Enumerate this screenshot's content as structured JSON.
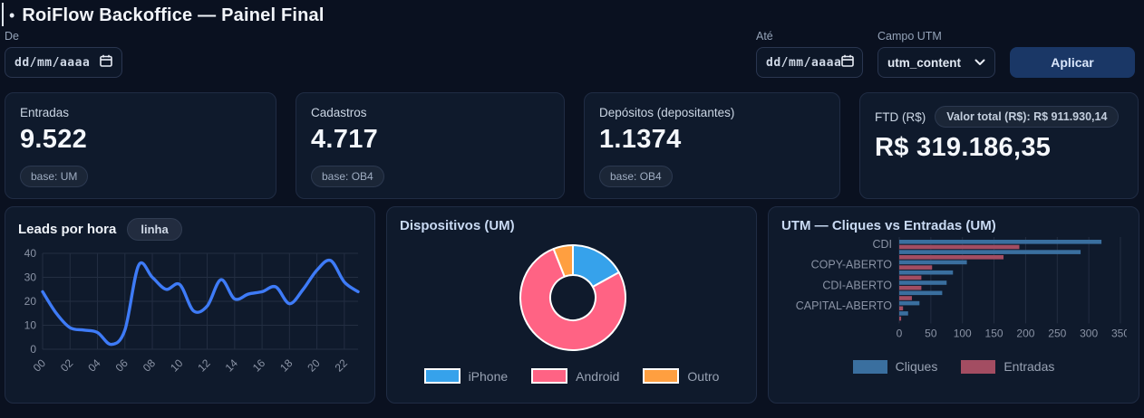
{
  "app": {
    "title": "RoiFlow Backoffice — Painel Final",
    "title_bullet": "•"
  },
  "filters": {
    "from_label": "De",
    "from_value": "dd/mm/aaaa",
    "to_label": "Até",
    "to_value": "dd/mm/aaaa",
    "utm_label": "Campo UTM",
    "utm_selected": "utm_content",
    "apply_label": "Aplicar"
  },
  "stats": [
    {
      "label": "Entradas",
      "value": "9.522",
      "badge": "base: UM"
    },
    {
      "label": "Cadastros",
      "value": "4.717",
      "badge": "base: OB4"
    },
    {
      "label": "Depósitos (depositantes)",
      "value": "1.1374",
      "badge": "base: OB4"
    },
    {
      "label": "FTD (R$)",
      "value": "R$ 319.186,35",
      "badge": "Valor total (R$): R$ 911.930,14"
    }
  ],
  "colors": {
    "background": "#0a1120",
    "card": "#0f1a2c",
    "card_border": "#202c44",
    "accent_line": "#3e7bf7",
    "pie_blue": "#36a2eb",
    "pie_pink": "#ff6384",
    "pie_orange": "#ff9f40",
    "bar_blue": "#3a6f9f",
    "bar_rose": "#a34d62",
    "grid": "#232e42",
    "tick_text": "#8a93a5"
  },
  "chart_data": [
    {
      "type": "line",
      "title": "Leads por hora",
      "badge": "linha",
      "x": [
        0,
        1,
        2,
        3,
        4,
        5,
        6,
        7,
        8,
        9,
        10,
        11,
        12,
        13,
        14,
        15,
        16,
        17,
        18,
        19,
        20,
        21,
        22,
        23
      ],
      "values": [
        24,
        15,
        9,
        8,
        7,
        2,
        8,
        35,
        30,
        25,
        27,
        16,
        18,
        29,
        21,
        23,
        24,
        26,
        19,
        25,
        33,
        37,
        28,
        24
      ],
      "x_tick_labels": [
        "00",
        "02",
        "04",
        "06",
        "08",
        "10",
        "12",
        "14",
        "16",
        "18",
        "20",
        "22"
      ],
      "ylim": [
        0,
        40
      ],
      "yticks": [
        0,
        10,
        20,
        30,
        40
      ],
      "grid": true,
      "line_color": "#3e7bf7",
      "legend_position": "none"
    },
    {
      "type": "pie",
      "title": "Dispositivos (UM)",
      "donut": true,
      "labels": [
        "iPhone",
        "Android",
        "Outro"
      ],
      "values": [
        17,
        77,
        6
      ],
      "unit": "percent-share",
      "colors": [
        "#36a2eb",
        "#ff6384",
        "#ff9f40"
      ],
      "legend_position": "bottom"
    },
    {
      "type": "bar",
      "title": "UTM — Cliques vs Entradas (UM)",
      "orientation": "horizontal",
      "categories": [
        "CDI",
        "",
        "COPY-ABERTO",
        "",
        "CDI-ABERTO",
        "",
        "CAPITAL-ABERTO",
        ""
      ],
      "visible_category_labels": [
        "CDI",
        "COPY-ABERTO",
        "CDI-ABERTO",
        "CAPITAL-ABERTO"
      ],
      "series": [
        {
          "name": "Cliques",
          "color": "#3a6f9f",
          "values": [
            320,
            287,
            107,
            85,
            75,
            68,
            32,
            14
          ]
        },
        {
          "name": "Entradas",
          "color": "#a34d62",
          "values": [
            190,
            165,
            52,
            35,
            35,
            20,
            6,
            3
          ]
        }
      ],
      "xlim": [
        0,
        350
      ],
      "xticks": [
        0,
        50,
        100,
        150,
        200,
        250,
        300,
        350
      ],
      "grid": true,
      "legend_position": "bottom"
    }
  ]
}
